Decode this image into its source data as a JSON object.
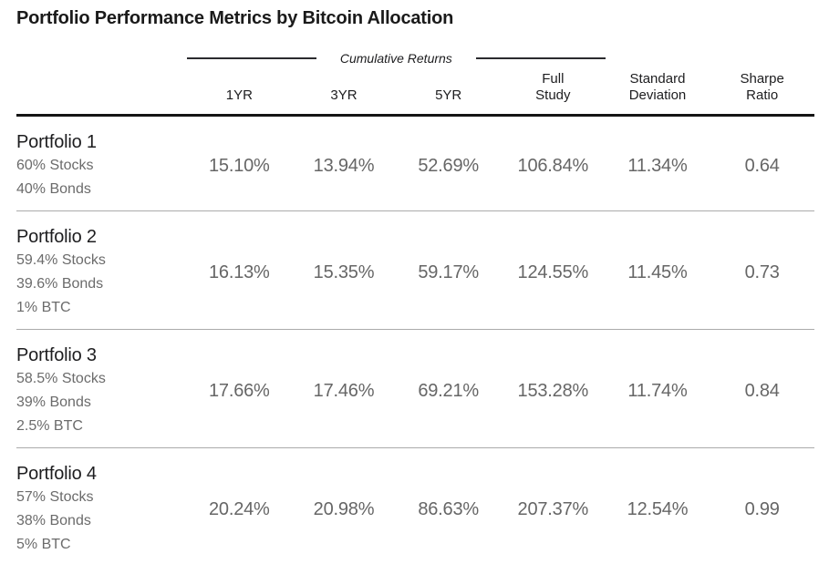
{
  "title": "Portfolio Performance Metrics by Bitcoin Allocation",
  "table": {
    "group_header": "Cumulative Returns",
    "columns": [
      [
        "1YR"
      ],
      [
        "3YR"
      ],
      [
        "5YR"
      ],
      [
        "Full",
        "Study"
      ],
      [
        "Standard",
        "Deviation"
      ],
      [
        "Sharpe",
        "Ratio"
      ]
    ],
    "rows": [
      {
        "name": "Portfolio 1",
        "allocation": [
          "60% Stocks",
          "40% Bonds"
        ],
        "values": [
          "15.10%",
          "13.94%",
          "52.69%",
          "106.84%",
          "11.34%",
          "0.64"
        ]
      },
      {
        "name": "Portfolio 2",
        "allocation": [
          "59.4% Stocks",
          "39.6% Bonds",
          "1% BTC"
        ],
        "values": [
          "16.13%",
          "15.35%",
          "59.17%",
          "124.55%",
          "11.45%",
          "0.73"
        ]
      },
      {
        "name": "Portfolio 3",
        "allocation": [
          "58.5% Stocks",
          "39% Bonds",
          "2.5% BTC"
        ],
        "values": [
          "17.66%",
          "17.46%",
          "69.21%",
          "153.28%",
          "11.74%",
          "0.84"
        ]
      },
      {
        "name": "Portfolio 4",
        "allocation": [
          "57% Stocks",
          "38% Bonds",
          "5% BTC"
        ],
        "values": [
          "20.24%",
          "20.98%",
          "86.63%",
          "207.37%",
          "12.54%",
          "0.99"
        ]
      }
    ]
  },
  "colors": {
    "title_text": "#1a1a1a",
    "header_text": "#1d1d1f",
    "value_text": "#666666",
    "allocation_text": "#6b6b6b",
    "thick_rule": "#141414",
    "row_separator": "#ababab"
  },
  "chart_data": {
    "type": "table",
    "title": "Portfolio Performance Metrics by Bitcoin Allocation",
    "group_header": "Cumulative Returns (spans 1YR, 3YR, 5YR)",
    "columns": [
      "Portfolio",
      "1YR",
      "3YR",
      "5YR",
      "Full Study",
      "Standard Deviation",
      "Sharpe Ratio"
    ],
    "rows": [
      [
        "Portfolio 1 (60% Stocks, 40% Bonds)",
        "15.10%",
        "13.94%",
        "52.69%",
        "106.84%",
        "11.34%",
        "0.64"
      ],
      [
        "Portfolio 2 (59.4% Stocks, 39.6% Bonds, 1% BTC)",
        "16.13%",
        "15.35%",
        "59.17%",
        "124.55%",
        "11.45%",
        "0.73"
      ],
      [
        "Portfolio 3 (58.5% Stocks, 39% Bonds, 2.5% BTC)",
        "17.66%",
        "17.46%",
        "69.21%",
        "153.28%",
        "11.74%",
        "0.84"
      ],
      [
        "Portfolio 4 (57% Stocks, 38% Bonds, 5% BTC)",
        "20.24%",
        "20.98%",
        "86.63%",
        "207.37%",
        "12.54%",
        "0.99"
      ]
    ]
  }
}
